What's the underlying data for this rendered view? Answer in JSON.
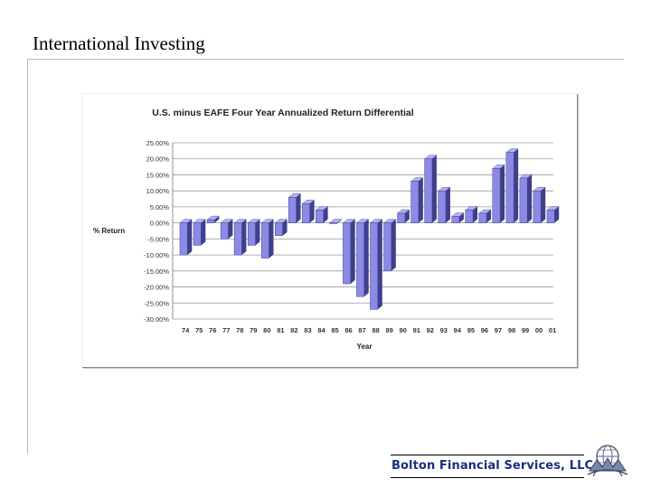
{
  "slide": {
    "title": "International Investing",
    "company": "Bolton Financial Services, LLC"
  },
  "colors": {
    "bar_front": "#8b8be6",
    "bar_top": "#b2b2f2",
    "bar_side": "#3f3f8c",
    "title_text": "#000000",
    "company_text": "#1a2f80"
  },
  "chart_data": {
    "type": "bar",
    "title": "U.S. minus EAFE Four Year Annualized Return Differential",
    "xlabel": "Year",
    "ylabel": "% Return",
    "ylim": [
      -30,
      25
    ],
    "yticks": [
      25,
      20,
      15,
      10,
      5,
      0,
      -5,
      -10,
      -15,
      -20,
      -25,
      -30
    ],
    "ytick_labels": [
      "25.00%",
      "20.00%",
      "15.00%",
      "10.00%",
      "5.00%",
      "0.00%",
      "-5.00%",
      "-10.00%",
      "-15.00%",
      "-20.00%",
      "-25.00%",
      "-30.00%"
    ],
    "grid": true,
    "categories": [
      "74",
      "75",
      "76",
      "77",
      "78",
      "79",
      "80",
      "81",
      "82",
      "83",
      "84",
      "85",
      "86",
      "87",
      "88",
      "89",
      "90",
      "91",
      "92",
      "93",
      "94",
      "95",
      "96",
      "97",
      "98",
      "99",
      "00",
      "01"
    ],
    "values": [
      -10,
      -7,
      1,
      -5,
      -10,
      -7,
      -11,
      -4,
      8,
      6,
      4,
      0,
      -19,
      -23,
      -27,
      -15,
      3,
      13,
      20,
      10,
      2,
      4,
      3,
      17,
      22,
      14,
      10,
      4
    ]
  }
}
